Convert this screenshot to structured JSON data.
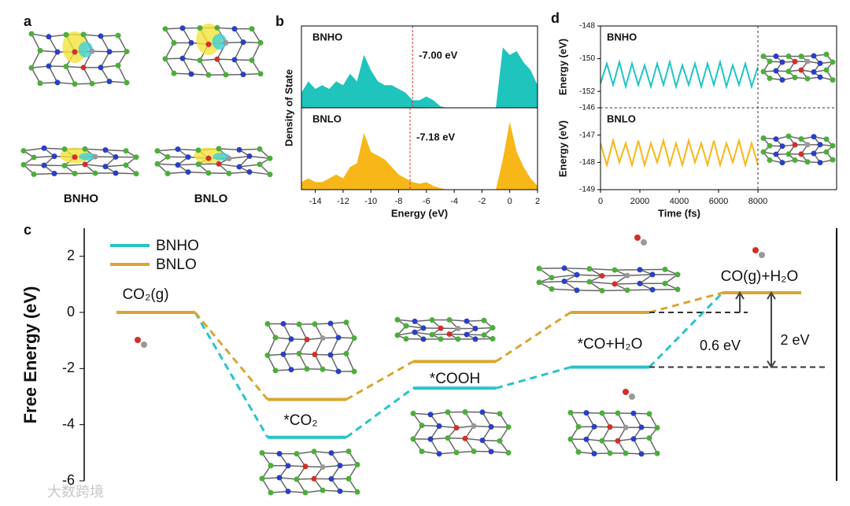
{
  "panel_a": {
    "label": "a",
    "names": [
      "BNHO",
      "BNLO"
    ]
  },
  "watermark": "大数跨境",
  "chart_data": [
    {
      "type": "dos",
      "panel_label": "b",
      "xlabel": "Energy (eV)",
      "ylabel": "Density of State",
      "xlim": [
        -15,
        2
      ],
      "xticks": [
        -14,
        -12,
        -10,
        -8,
        -6,
        -4,
        -2,
        0,
        2
      ],
      "ylim": [
        0,
        1
      ],
      "x": [
        -15,
        -14.5,
        -14,
        -13.5,
        -13,
        -12.5,
        -12,
        -11.5,
        -11,
        -10.5,
        -10,
        -9.5,
        -9,
        -8.5,
        -8,
        -7.5,
        -7,
        -6.5,
        -6,
        -5.5,
        -5,
        -4.5,
        -4,
        -3.5,
        -3,
        -2.5,
        -2,
        -1.5,
        -1,
        -0.5,
        0,
        0.5,
        1,
        1.5,
        2
      ],
      "series": [
        {
          "name": "BNHO",
          "color": "#1fc4bd",
          "fermi": {
            "value": -7.0,
            "label": "-7.00 eV"
          },
          "values": [
            0.2,
            0.35,
            0.25,
            0.3,
            0.25,
            0.35,
            0.3,
            0.45,
            0.35,
            0.7,
            0.5,
            0.35,
            0.3,
            0.3,
            0.25,
            0.2,
            0.1,
            0.1,
            0.15,
            0.1,
            0.02,
            0,
            0,
            0,
            0,
            0,
            0,
            0,
            0,
            0.8,
            0.7,
            0.75,
            0.6,
            0.5,
            0.3
          ]
        },
        {
          "name": "BNLO",
          "color": "#f7b718",
          "fermi": {
            "value": -7.18,
            "label": "-7.18 eV"
          },
          "values": [
            0.1,
            0.15,
            0.1,
            0.1,
            0.15,
            0.2,
            0.15,
            0.3,
            0.35,
            0.75,
            0.5,
            0.45,
            0.4,
            0.3,
            0.2,
            0.15,
            0.1,
            0.08,
            0.1,
            0.05,
            0.02,
            0,
            0,
            0,
            0,
            0,
            0,
            0,
            0,
            0.4,
            0.9,
            0.5,
            0.3,
            0.15,
            0.05
          ]
        }
      ]
    },
    {
      "type": "md",
      "panel_label": "d",
      "xlabel": "Time (fs)",
      "ylabel": "Energy (eV)",
      "xlim": [
        0,
        12000
      ],
      "xticks": [
        0,
        2000,
        4000,
        6000,
        8000
      ],
      "vline": 8000,
      "x": [
        0,
        320,
        640,
        960,
        1280,
        1600,
        1920,
        2240,
        2560,
        2880,
        3200,
        3520,
        3840,
        4160,
        4480,
        4800,
        5120,
        5440,
        5760,
        6080,
        6400,
        6720,
        7040,
        7360,
        7680,
        8000
      ],
      "series": [
        {
          "name": "BNHO",
          "color": "#1fc4c4",
          "ylim": [
            -153,
            -148
          ],
          "yticks": [
            -152,
            -150,
            -148
          ],
          "values": [
            -151.5,
            -150.3,
            -151.6,
            -150.2,
            -151.7,
            -150.3,
            -151.6,
            -150.4,
            -151.7,
            -150.3,
            -151.6,
            -150.2,
            -151.7,
            -150.4,
            -151.6,
            -150.3,
            -151.7,
            -150.3,
            -151.6,
            -150.2,
            -151.7,
            -150.4,
            -151.6,
            -150.3,
            -151.7,
            -150.5
          ]
        },
        {
          "name": "BNLO",
          "color": "#f7b718",
          "ylim": [
            -149,
            -146
          ],
          "yticks": [
            -149,
            -148,
            -147,
            -146
          ],
          "values": [
            -147.3,
            -148.1,
            -147.2,
            -148.0,
            -147.3,
            -148.1,
            -147.2,
            -148.1,
            -147.3,
            -148.0,
            -147.2,
            -148.1,
            -147.3,
            -148.1,
            -147.2,
            -148.0,
            -147.3,
            -148.1,
            -147.2,
            -148.1,
            -147.3,
            -148.0,
            -147.2,
            -148.1,
            -147.3,
            -148.1
          ]
        }
      ]
    },
    {
      "type": "energy_diagram",
      "panel_label": "c",
      "ylabel": "Free Energy (eV)",
      "ylim": [
        -6,
        3
      ],
      "yticks": [
        -6,
        -4,
        -2,
        0,
        2
      ],
      "categories": [
        "CO₂(g)",
        "*CO₂",
        "*COOH",
        "*CO+H₂O",
        "CO(g)+H₂O"
      ],
      "series": [
        {
          "name": "BNHO",
          "color": "#27c4c9",
          "values": [
            0,
            -4.45,
            -2.7,
            -1.95,
            0.7
          ]
        },
        {
          "name": "BNLO",
          "color": "#d9a631",
          "values": [
            0,
            -3.1,
            -1.75,
            0,
            0.7
          ]
        }
      ],
      "annotations": [
        "0.6 eV",
        "2 eV"
      ]
    }
  ]
}
